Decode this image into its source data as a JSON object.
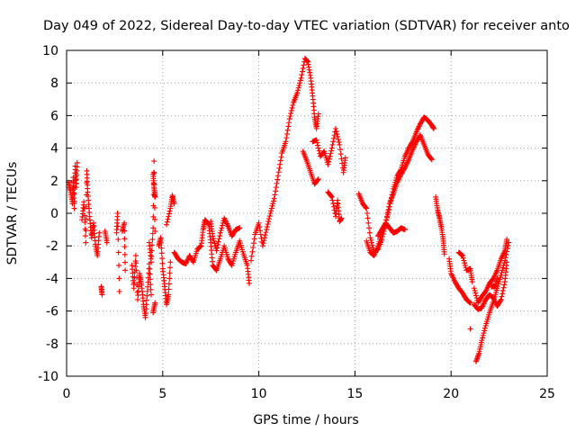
{
  "chart_data": {
    "type": "scatter",
    "title": "Day 049 of 2022, Sidereal Day-to-day VTEC variation (SDTVAR) for receiver anto",
    "xlabel": "GPS time / hours",
    "ylabel": "SDTVAR / TECUs",
    "xlim": [
      0,
      25
    ],
    "ylim": [
      -10,
      10
    ],
    "xticks": [
      "0",
      "5",
      "10",
      "15",
      "20",
      "25"
    ],
    "yticks": [
      "-10",
      "-8",
      "-6",
      "-4",
      "-2",
      "0",
      "2",
      "4",
      "6",
      "8",
      "10"
    ],
    "grid": true,
    "marker": "+",
    "color": "#ff0000",
    "series": [
      {
        "name": "SDTVAR",
        "segments": [
          [
            [
              0.1,
              1.9
            ],
            [
              0.2,
              1.4
            ],
            [
              0.3,
              0.6
            ],
            [
              0.35,
              2.2
            ],
            [
              0.4,
              0.3
            ],
            [
              0.45,
              2.9
            ],
            [
              0.5,
              1.6
            ],
            [
              0.55,
              3.1
            ]
          ],
          [
            [
              0.8,
              -0.4
            ],
            [
              0.9,
              0.7
            ],
            [
              1.0,
              -1.8
            ],
            [
              1.05,
              2.6
            ],
            [
              1.1,
              1.3
            ],
            [
              1.2,
              -0.2
            ],
            [
              1.3,
              -1.5
            ],
            [
              1.4,
              -0.6
            ],
            [
              1.5,
              -1.9
            ],
            [
              1.6,
              -2.6
            ],
            [
              1.7,
              -1.2
            ]
          ],
          [
            [
              1.8,
              -4.5
            ],
            [
              1.85,
              -5.0
            ]
          ],
          [
            [
              2.0,
              -1.1
            ],
            [
              2.1,
              -1.8
            ]
          ],
          [
            [
              2.6,
              -1.2
            ],
            [
              2.65,
              0.0
            ],
            [
              2.75,
              -4.8
            ]
          ],
          [
            [
              2.9,
              -1.1
            ],
            [
              3.0,
              -0.6
            ],
            [
              3.05,
              -3.5
            ]
          ],
          [
            [
              3.4,
              -3.2
            ],
            [
              3.5,
              -4.6
            ],
            [
              3.6,
              -2.6
            ],
            [
              3.7,
              -5.3
            ],
            [
              3.8,
              -3.7
            ],
            [
              3.9,
              -4.4
            ],
            [
              4.0,
              -5.6
            ],
            [
              4.1,
              -6.4
            ],
            [
              4.2,
              -4.8
            ],
            [
              4.3,
              -3.1
            ],
            [
              4.4,
              -5.0
            ]
          ],
          [
            [
              4.3,
              -1.8
            ],
            [
              4.4,
              -3.0
            ],
            [
              4.5,
              -0.9
            ],
            [
              4.55,
              3.2
            ],
            [
              4.6,
              -1.1
            ]
          ],
          [
            [
              4.5,
              2.4
            ],
            [
              4.55,
              1.6
            ],
            [
              4.6,
              1.0
            ]
          ],
          [
            [
              4.5,
              -6.1
            ],
            [
              4.6,
              -5.5
            ]
          ],
          [
            [
              4.8,
              -2.0
            ],
            [
              4.9,
              -1.5
            ],
            [
              5.0,
              -3.4
            ],
            [
              5.1,
              -4.5
            ],
            [
              5.2,
              -5.6
            ],
            [
              5.3,
              -5.0
            ],
            [
              5.4,
              -3.0
            ]
          ],
          [
            [
              5.2,
              -0.7
            ],
            [
              5.4,
              0.3
            ],
            [
              5.5,
              1.1
            ],
            [
              5.6,
              0.6
            ]
          ],
          [
            [
              5.6,
              -2.4
            ],
            [
              5.8,
              -2.8
            ],
            [
              6.0,
              -3.0
            ],
            [
              6.2,
              -3.1
            ],
            [
              6.4,
              -2.6
            ],
            [
              6.6,
              -3.0
            ],
            [
              6.8,
              -2.2
            ],
            [
              7.0,
              -2.0
            ],
            [
              7.1,
              -1.0
            ],
            [
              7.2,
              -0.4
            ],
            [
              7.4,
              -0.7
            ],
            [
              7.5,
              -1.8
            ],
            [
              7.6,
              -3.2
            ],
            [
              7.8,
              -3.5
            ],
            [
              8.0,
              -2.8
            ],
            [
              8.2,
              -2.0
            ],
            [
              8.4,
              -2.8
            ],
            [
              8.6,
              -3.2
            ],
            [
              8.8,
              -2.4
            ],
            [
              9.0,
              -1.7
            ],
            [
              9.2,
              -2.5
            ],
            [
              9.4,
              -3.2
            ],
            [
              9.5,
              -4.3
            ]
          ],
          [
            [
              7.5,
              -0.5
            ],
            [
              7.6,
              -1.4
            ],
            [
              7.8,
              -2.3
            ],
            [
              8.0,
              -1.2
            ],
            [
              8.2,
              -0.3
            ],
            [
              8.4,
              -0.8
            ],
            [
              8.6,
              -1.4
            ],
            [
              8.8,
              -1.0
            ],
            [
              9.0,
              -0.9
            ]
          ],
          [
            [
              9.6,
              -2.9
            ],
            [
              9.8,
              -1.3
            ],
            [
              10.0,
              -0.6
            ],
            [
              10.2,
              -2.0
            ],
            [
              10.4,
              -1.0
            ],
            [
              10.6,
              0.0
            ],
            [
              10.8,
              0.9
            ],
            [
              11.0,
              2.3
            ],
            [
              11.2,
              3.7
            ],
            [
              11.4,
              4.4
            ],
            [
              11.6,
              5.8
            ],
            [
              11.8,
              6.8
            ],
            [
              12.0,
              7.4
            ],
            [
              12.2,
              8.3
            ],
            [
              12.4,
              9.5
            ],
            [
              12.55,
              9.3
            ],
            [
              12.7,
              8.3
            ],
            [
              12.8,
              7.2
            ],
            [
              12.9,
              5.9
            ],
            [
              13.0,
              5.2
            ],
            [
              13.1,
              6.1
            ]
          ],
          [
            [
              12.3,
              3.8
            ],
            [
              12.5,
              3.2
            ],
            [
              12.7,
              2.5
            ],
            [
              12.9,
              1.8
            ],
            [
              13.1,
              2.1
            ]
          ],
          [
            [
              12.8,
              4.4
            ],
            [
              13.0,
              4.5
            ],
            [
              13.2,
              3.5
            ],
            [
              13.4,
              3.8
            ],
            [
              13.6,
              3.0
            ],
            [
              13.8,
              4.0
            ],
            [
              14.0,
              5.2
            ],
            [
              14.2,
              4.2
            ],
            [
              14.4,
              2.5
            ],
            [
              14.5,
              3.4
            ]
          ],
          [
            [
              13.6,
              1.3
            ],
            [
              13.8,
              1.0
            ],
            [
              14.0,
              -0.2
            ],
            [
              14.1,
              0.8
            ],
            [
              14.2,
              -0.5
            ],
            [
              14.3,
              -0.3
            ]
          ],
          [
            [
              15.2,
              1.2
            ],
            [
              15.4,
              0.6
            ],
            [
              15.6,
              0.3
            ],
            [
              15.8,
              -1.5
            ],
            [
              16.0,
              -2.4
            ],
            [
              16.2,
              -2.2
            ],
            [
              16.4,
              -1.6
            ],
            [
              16.6,
              -0.6
            ],
            [
              16.8,
              0.4
            ],
            [
              17.0,
              1.5
            ],
            [
              17.2,
              2.3
            ],
            [
              17.4,
              2.7
            ],
            [
              17.6,
              3.5
            ],
            [
              17.8,
              4.0
            ],
            [
              18.0,
              4.4
            ],
            [
              18.2,
              5.0
            ],
            [
              18.4,
              5.5
            ],
            [
              18.6,
              5.9
            ],
            [
              18.8,
              5.7
            ],
            [
              19.0,
              5.4
            ],
            [
              19.1,
              5.2
            ]
          ],
          [
            [
              15.6,
              -1.7
            ],
            [
              15.8,
              -2.4
            ],
            [
              16.0,
              -2.6
            ],
            [
              16.2,
              -2.0
            ],
            [
              16.4,
              -1.2
            ],
            [
              16.6,
              -0.6
            ],
            [
              16.8,
              0.6
            ],
            [
              17.0,
              1.2
            ],
            [
              17.2,
              1.9
            ],
            [
              17.4,
              2.4
            ],
            [
              17.6,
              2.8
            ],
            [
              17.8,
              3.3
            ],
            [
              18.0,
              3.9
            ],
            [
              18.2,
              4.4
            ],
            [
              18.4,
              4.8
            ],
            [
              18.6,
              4.2
            ],
            [
              18.8,
              3.6
            ],
            [
              19.0,
              3.3
            ]
          ],
          [
            [
              16.2,
              -1.4
            ],
            [
              16.4,
              -1.0
            ],
            [
              16.6,
              -0.6
            ],
            [
              16.8,
              -0.9
            ],
            [
              17.0,
              -1.2
            ],
            [
              17.2,
              -1.1
            ],
            [
              17.4,
              -0.9
            ],
            [
              17.6,
              -1.0
            ]
          ],
          [
            [
              19.2,
              1.0
            ],
            [
              19.3,
              0.2
            ],
            [
              19.4,
              -0.3
            ],
            [
              19.5,
              -0.9
            ],
            [
              19.6,
              -1.7
            ],
            [
              19.65,
              -2.5
            ]
          ],
          [
            [
              19.9,
              -2.8
            ],
            [
              20.0,
              -3.7
            ],
            [
              20.2,
              -4.2
            ],
            [
              20.4,
              -4.6
            ],
            [
              20.6,
              -4.9
            ],
            [
              20.8,
              -5.3
            ],
            [
              21.0,
              -5.5
            ]
          ],
          [
            [
              20.4,
              -2.4
            ],
            [
              20.6,
              -2.6
            ],
            [
              20.8,
              -3.5
            ],
            [
              21.0,
              -3.4
            ],
            [
              21.1,
              -4.2
            ]
          ],
          [
            [
              21.0,
              -7.1
            ]
          ],
          [
            [
              21.2,
              -4.6
            ],
            [
              21.4,
              -5.5
            ],
            [
              21.6,
              -5.1
            ],
            [
              21.8,
              -4.8
            ],
            [
              22.0,
              -4.3
            ],
            [
              22.2,
              -4.0
            ],
            [
              22.4,
              -3.5
            ],
            [
              22.6,
              -2.8
            ],
            [
              22.8,
              -2.3
            ],
            [
              22.9,
              -1.6
            ]
          ],
          [
            [
              21.2,
              -5.6
            ],
            [
              21.4,
              -5.9
            ],
            [
              21.6,
              -5.8
            ],
            [
              21.8,
              -5.3
            ],
            [
              22.0,
              -5.0
            ],
            [
              22.2,
              -5.2
            ],
            [
              22.4,
              -5.7
            ],
            [
              22.6,
              -5.3
            ],
            [
              22.8,
              -4.2
            ],
            [
              22.9,
              -3.0
            ]
          ],
          [
            [
              21.3,
              -9.1
            ],
            [
              21.45,
              -8.6
            ],
            [
              21.6,
              -7.8
            ],
            [
              21.8,
              -6.9
            ],
            [
              22.0,
              -6.1
            ],
            [
              22.2,
              -5.4
            ],
            [
              22.4,
              -4.6
            ],
            [
              22.6,
              -3.8
            ],
            [
              22.8,
              -2.9
            ],
            [
              23.0,
              -1.8
            ]
          ],
          [
            [
              22.1,
              -4.5
            ],
            [
              22.3,
              -4.5
            ],
            [
              22.4,
              -4.0
            ]
          ]
        ]
      }
    ]
  }
}
